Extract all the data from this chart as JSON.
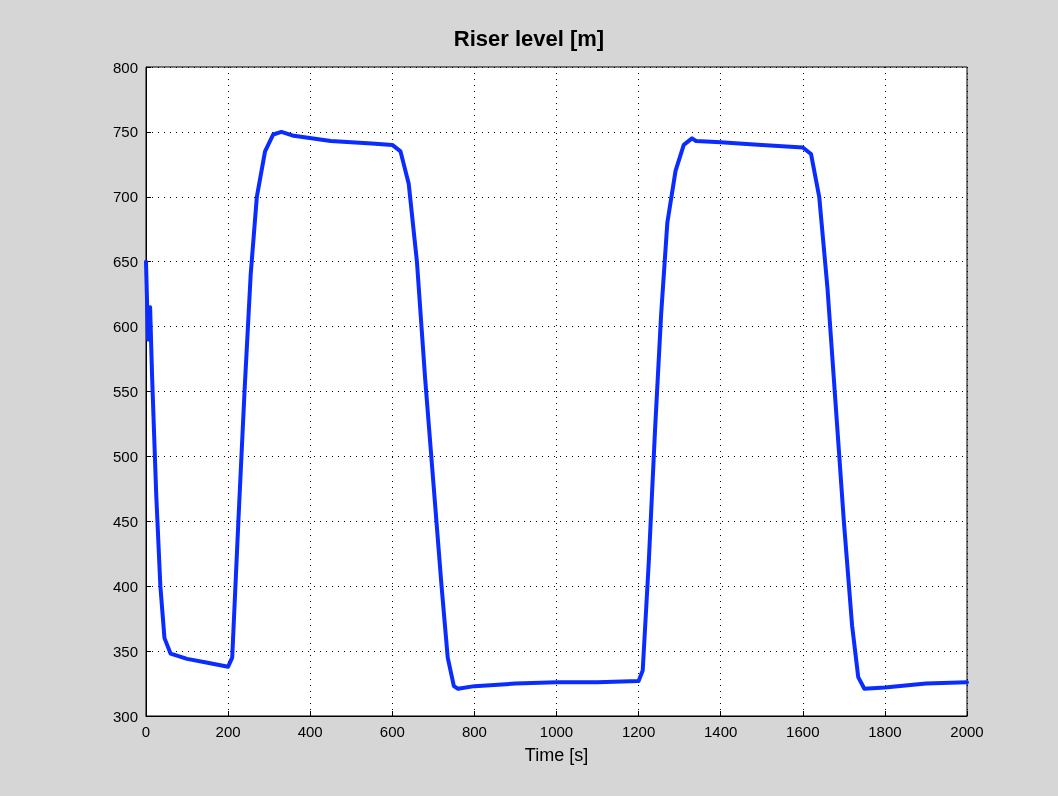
{
  "chart_data": {
    "type": "line",
    "title": "Riser level [m]",
    "xlabel": "Time [s]",
    "x": [
      0,
      5,
      10,
      15,
      25,
      35,
      45,
      60,
      100,
      150,
      200,
      210,
      225,
      240,
      255,
      270,
      290,
      310,
      330,
      360,
      450,
      550,
      600,
      620,
      640,
      660,
      680,
      700,
      720,
      735,
      750,
      760,
      800,
      900,
      1000,
      1100,
      1200,
      1210,
      1225,
      1240,
      1255,
      1270,
      1290,
      1310,
      1330,
      1340,
      1400,
      1500,
      1600,
      1620,
      1640,
      1660,
      1680,
      1700,
      1720,
      1735,
      1750,
      1800,
      1900,
      2000
    ],
    "series": [
      {
        "color": "#0a2cff",
        "values": [
          650,
          590,
          615,
          560,
          470,
          400,
          360,
          348,
          344,
          341,
          338,
          345,
          450,
          550,
          640,
          700,
          735,
          748,
          750,
          747,
          743,
          741,
          740,
          735,
          710,
          650,
          560,
          480,
          400,
          345,
          323,
          321,
          323,
          325,
          326,
          326,
          327,
          335,
          420,
          520,
          610,
          680,
          720,
          740,
          745,
          743,
          742,
          740,
          738,
          733,
          700,
          630,
          540,
          450,
          370,
          330,
          321,
          322,
          325,
          326
        ]
      }
    ],
    "xlim": [
      0,
      2000
    ],
    "xticks": [
      0,
      200,
      400,
      600,
      800,
      1000,
      1200,
      1400,
      1600,
      1800,
      2000
    ],
    "ylim": [
      300,
      800
    ],
    "yticks": [
      300,
      350,
      400,
      450,
      500,
      550,
      600,
      650,
      700,
      750,
      800
    ],
    "grid": true,
    "marker": "none",
    "line_style": "solid"
  }
}
